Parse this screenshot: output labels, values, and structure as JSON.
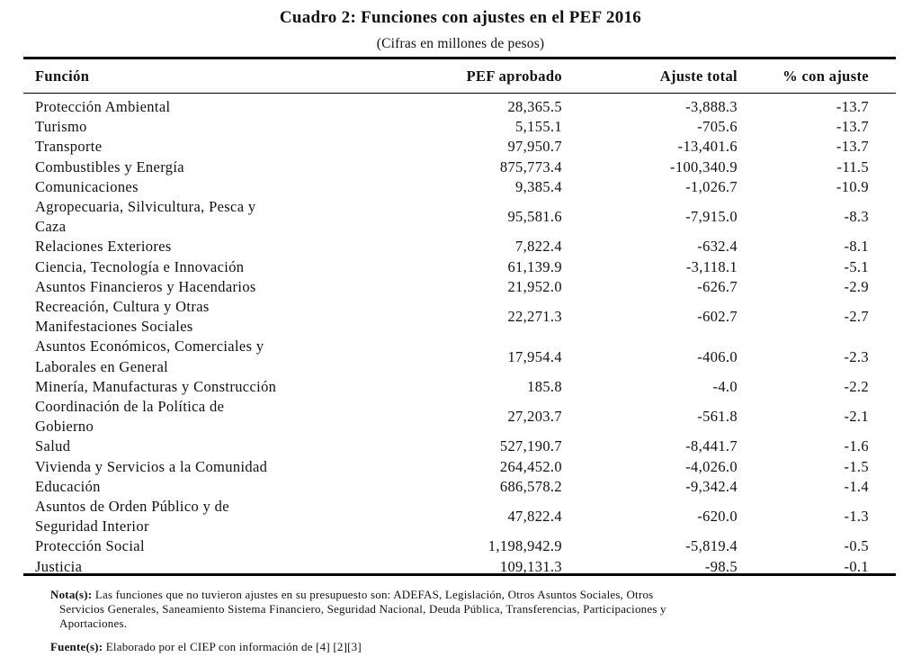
{
  "title": "Cuadro 2: Funciones con ajustes en el PEF 2016",
  "subtitle": "(Cifras en millones de pesos)",
  "columns": [
    "Función",
    "PEF aprobado",
    "Ajuste total",
    "% con ajuste"
  ],
  "rows": [
    {
      "name": [
        "Protección Ambiental"
      ],
      "pef": "28,365.5",
      "ajuste": "-3,888.3",
      "pct": "-13.7"
    },
    {
      "name": [
        "Turismo"
      ],
      "pef": "5,155.1",
      "ajuste": "-705.6",
      "pct": "-13.7"
    },
    {
      "name": [
        "Transporte"
      ],
      "pef": "97,950.7",
      "ajuste": "-13,401.6",
      "pct": "-13.7"
    },
    {
      "name": [
        "Combustibles y Energía"
      ],
      "pef": "875,773.4",
      "ajuste": "-100,340.9",
      "pct": "-11.5"
    },
    {
      "name": [
        "Comunicaciones"
      ],
      "pef": "9,385.4",
      "ajuste": "-1,026.7",
      "pct": "-10.9"
    },
    {
      "name": [
        "Agropecuaria, Silvicultura, Pesca y",
        "Caza"
      ],
      "pef": "95,581.6",
      "ajuste": "-7,915.0",
      "pct": "-8.3"
    },
    {
      "name": [
        "Relaciones Exteriores"
      ],
      "pef": "7,822.4",
      "ajuste": "-632.4",
      "pct": "-8.1"
    },
    {
      "name": [
        "Ciencia, Tecnología e Innovación"
      ],
      "pef": "61,139.9",
      "ajuste": "-3,118.1",
      "pct": "-5.1"
    },
    {
      "name": [
        "Asuntos Financieros y Hacendarios"
      ],
      "pef": "21,952.0",
      "ajuste": "-626.7",
      "pct": "-2.9"
    },
    {
      "name": [
        "Recreación, Cultura y Otras",
        "Manifestaciones Sociales"
      ],
      "pef": "22,271.3",
      "ajuste": "-602.7",
      "pct": "-2.7"
    },
    {
      "name": [
        "Asuntos Económicos, Comerciales y",
        "Laborales en General"
      ],
      "pef": "17,954.4",
      "ajuste": "-406.0",
      "pct": "-2.3"
    },
    {
      "name": [
        "Minería, Manufacturas y Construcción"
      ],
      "pef": "185.8",
      "ajuste": "-4.0",
      "pct": "-2.2"
    },
    {
      "name": [
        "Coordinación de la Política de",
        "Gobierno"
      ],
      "pef": "27,203.7",
      "ajuste": "-561.8",
      "pct": "-2.1"
    },
    {
      "name": [
        "Salud"
      ],
      "pef": "527,190.7",
      "ajuste": "-8,441.7",
      "pct": "-1.6"
    },
    {
      "name": [
        "Vivienda y Servicios a la Comunidad"
      ],
      "pef": "264,452.0",
      "ajuste": "-4,026.0",
      "pct": "-1.5"
    },
    {
      "name": [
        "Educación"
      ],
      "pef": "686,578.2",
      "ajuste": "-9,342.4",
      "pct": "-1.4"
    },
    {
      "name": [
        "Asuntos de Orden Público y de",
        "Seguridad Interior"
      ],
      "pef": "47,822.4",
      "ajuste": "-620.0",
      "pct": "-1.3"
    },
    {
      "name": [
        "Protección Social"
      ],
      "pef": "1,198,942.9",
      "ajuste": "-5,819.4",
      "pct": "-0.5"
    },
    {
      "name": [
        "Justicia"
      ],
      "pef": "109,131.3",
      "ajuste": "-98.5",
      "pct": "-0.1"
    }
  ],
  "notes": {
    "nota_label": "Nota(s):",
    "nota_lines": [
      "Las funciones que no tuvieron ajustes en su presupuesto son: ADEFAS, Legislación, Otros Asuntos Sociales, Otros",
      "Servicios Generales, Saneamiento Sistema Financiero, Seguridad Nacional, Deuda Pública, Transferencias, Participaciones y",
      "Aportaciones."
    ],
    "fuente_label": "Fuente(s):",
    "fuente_text": "Elaborado por el CIEP con información de [4] [2][3]"
  }
}
